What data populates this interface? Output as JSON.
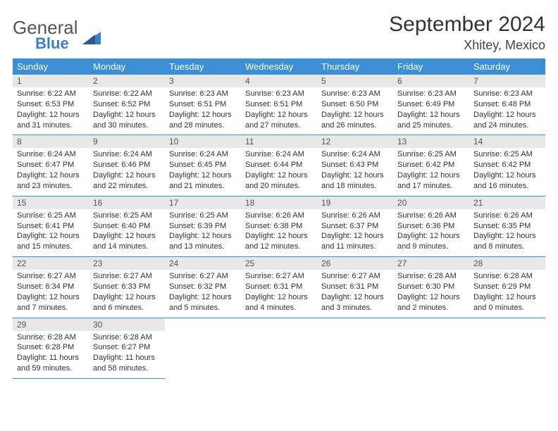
{
  "brand": {
    "name1": "General",
    "name2": "Blue"
  },
  "title": "September 2024",
  "location": "Xhitey, Mexico",
  "colors": {
    "header_bg": "#3b8fd4",
    "header_text": "#ffffff",
    "daynum_bg": "#e8e8e8",
    "cell_border": "#3b8fd4",
    "text": "#333333",
    "brand_gray": "#555555",
    "brand_blue": "#3b7fc4"
  },
  "weekdays": [
    "Sunday",
    "Monday",
    "Tuesday",
    "Wednesday",
    "Thursday",
    "Friday",
    "Saturday"
  ],
  "weeks": [
    [
      {
        "n": "1",
        "sunrise": "Sunrise: 6:22 AM",
        "sunset": "Sunset: 6:53 PM",
        "daylight": "Daylight: 12 hours and 31 minutes."
      },
      {
        "n": "2",
        "sunrise": "Sunrise: 6:22 AM",
        "sunset": "Sunset: 6:52 PM",
        "daylight": "Daylight: 12 hours and 30 minutes."
      },
      {
        "n": "3",
        "sunrise": "Sunrise: 6:23 AM",
        "sunset": "Sunset: 6:51 PM",
        "daylight": "Daylight: 12 hours and 28 minutes."
      },
      {
        "n": "4",
        "sunrise": "Sunrise: 6:23 AM",
        "sunset": "Sunset: 6:51 PM",
        "daylight": "Daylight: 12 hours and 27 minutes."
      },
      {
        "n": "5",
        "sunrise": "Sunrise: 6:23 AM",
        "sunset": "Sunset: 6:50 PM",
        "daylight": "Daylight: 12 hours and 26 minutes."
      },
      {
        "n": "6",
        "sunrise": "Sunrise: 6:23 AM",
        "sunset": "Sunset: 6:49 PM",
        "daylight": "Daylight: 12 hours and 25 minutes."
      },
      {
        "n": "7",
        "sunrise": "Sunrise: 6:23 AM",
        "sunset": "Sunset: 6:48 PM",
        "daylight": "Daylight: 12 hours and 24 minutes."
      }
    ],
    [
      {
        "n": "8",
        "sunrise": "Sunrise: 6:24 AM",
        "sunset": "Sunset: 6:47 PM",
        "daylight": "Daylight: 12 hours and 23 minutes."
      },
      {
        "n": "9",
        "sunrise": "Sunrise: 6:24 AM",
        "sunset": "Sunset: 6:46 PM",
        "daylight": "Daylight: 12 hours and 22 minutes."
      },
      {
        "n": "10",
        "sunrise": "Sunrise: 6:24 AM",
        "sunset": "Sunset: 6:45 PM",
        "daylight": "Daylight: 12 hours and 21 minutes."
      },
      {
        "n": "11",
        "sunrise": "Sunrise: 6:24 AM",
        "sunset": "Sunset: 6:44 PM",
        "daylight": "Daylight: 12 hours and 20 minutes."
      },
      {
        "n": "12",
        "sunrise": "Sunrise: 6:24 AM",
        "sunset": "Sunset: 6:43 PM",
        "daylight": "Daylight: 12 hours and 18 minutes."
      },
      {
        "n": "13",
        "sunrise": "Sunrise: 6:25 AM",
        "sunset": "Sunset: 6:42 PM",
        "daylight": "Daylight: 12 hours and 17 minutes."
      },
      {
        "n": "14",
        "sunrise": "Sunrise: 6:25 AM",
        "sunset": "Sunset: 6:42 PM",
        "daylight": "Daylight: 12 hours and 16 minutes."
      }
    ],
    [
      {
        "n": "15",
        "sunrise": "Sunrise: 6:25 AM",
        "sunset": "Sunset: 6:41 PM",
        "daylight": "Daylight: 12 hours and 15 minutes."
      },
      {
        "n": "16",
        "sunrise": "Sunrise: 6:25 AM",
        "sunset": "Sunset: 6:40 PM",
        "daylight": "Daylight: 12 hours and 14 minutes."
      },
      {
        "n": "17",
        "sunrise": "Sunrise: 6:25 AM",
        "sunset": "Sunset: 6:39 PM",
        "daylight": "Daylight: 12 hours and 13 minutes."
      },
      {
        "n": "18",
        "sunrise": "Sunrise: 6:26 AM",
        "sunset": "Sunset: 6:38 PM",
        "daylight": "Daylight: 12 hours and 12 minutes."
      },
      {
        "n": "19",
        "sunrise": "Sunrise: 6:26 AM",
        "sunset": "Sunset: 6:37 PM",
        "daylight": "Daylight: 12 hours and 11 minutes."
      },
      {
        "n": "20",
        "sunrise": "Sunrise: 6:26 AM",
        "sunset": "Sunset: 6:36 PM",
        "daylight": "Daylight: 12 hours and 9 minutes."
      },
      {
        "n": "21",
        "sunrise": "Sunrise: 6:26 AM",
        "sunset": "Sunset: 6:35 PM",
        "daylight": "Daylight: 12 hours and 8 minutes."
      }
    ],
    [
      {
        "n": "22",
        "sunrise": "Sunrise: 6:27 AM",
        "sunset": "Sunset: 6:34 PM",
        "daylight": "Daylight: 12 hours and 7 minutes."
      },
      {
        "n": "23",
        "sunrise": "Sunrise: 6:27 AM",
        "sunset": "Sunset: 6:33 PM",
        "daylight": "Daylight: 12 hours and 6 minutes."
      },
      {
        "n": "24",
        "sunrise": "Sunrise: 6:27 AM",
        "sunset": "Sunset: 6:32 PM",
        "daylight": "Daylight: 12 hours and 5 minutes."
      },
      {
        "n": "25",
        "sunrise": "Sunrise: 6:27 AM",
        "sunset": "Sunset: 6:31 PM",
        "daylight": "Daylight: 12 hours and 4 minutes."
      },
      {
        "n": "26",
        "sunrise": "Sunrise: 6:27 AM",
        "sunset": "Sunset: 6:31 PM",
        "daylight": "Daylight: 12 hours and 3 minutes."
      },
      {
        "n": "27",
        "sunrise": "Sunrise: 6:28 AM",
        "sunset": "Sunset: 6:30 PM",
        "daylight": "Daylight: 12 hours and 2 minutes."
      },
      {
        "n": "28",
        "sunrise": "Sunrise: 6:28 AM",
        "sunset": "Sunset: 6:29 PM",
        "daylight": "Daylight: 12 hours and 0 minutes."
      }
    ],
    [
      {
        "n": "29",
        "sunrise": "Sunrise: 6:28 AM",
        "sunset": "Sunset: 6:28 PM",
        "daylight": "Daylight: 11 hours and 59 minutes."
      },
      {
        "n": "30",
        "sunrise": "Sunrise: 6:28 AM",
        "sunset": "Sunset: 6:27 PM",
        "daylight": "Daylight: 11 hours and 58 minutes."
      },
      null,
      null,
      null,
      null,
      null
    ]
  ]
}
